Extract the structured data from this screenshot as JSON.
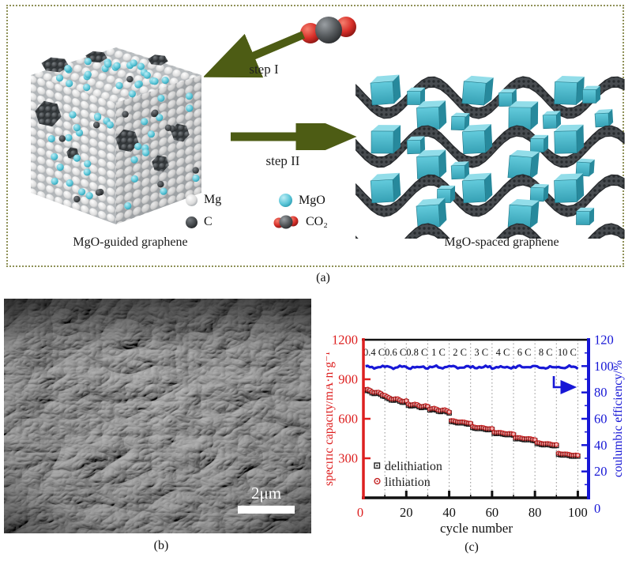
{
  "panel_a": {
    "label": "(a)",
    "left_caption": "MgO-guided graphene",
    "right_caption": "MgO-spaced graphene",
    "step1_label": "step I",
    "step2_label": "step II",
    "legend": [
      {
        "label": "Mg",
        "swatch": "white-sphere"
      },
      {
        "label": "C",
        "swatch": "black-sphere"
      },
      {
        "label": "MgO",
        "swatch": "cyan-sphere"
      },
      {
        "label": "CO₂",
        "swatch": "co2-molecule"
      }
    ],
    "colors": {
      "arrow": "#4d5c14",
      "border": "#8f9158",
      "mgo": "#49bdd2",
      "sheet": "#3c4043"
    }
  },
  "panel_b": {
    "label": "(b)",
    "scale_bar_label": "2μm"
  },
  "panel_c": {
    "label": "(c)",
    "chart_data": {
      "type": "scatter",
      "xlabel": "cycle number",
      "ylabel_left": "specific capacity/mA·h·g⁻¹",
      "ylabel_right": "coulumbic efficiency/%",
      "xlim": [
        0,
        105
      ],
      "ylim_left": [
        0,
        1200
      ],
      "ylim_right": [
        0,
        120
      ],
      "x_ticks": [
        0,
        20,
        40,
        60,
        80,
        100
      ],
      "y_ticks_left": [
        0,
        300,
        600,
        900,
        1200
      ],
      "y_ticks_right": [
        0,
        20,
        40,
        60,
        80,
        100,
        120
      ],
      "grid": "vertical dotted line every 10 cycles",
      "rate_segments": [
        {
          "rate_label": "0.4 C",
          "cycles": [
            1,
            10
          ],
          "capacity_start": 815,
          "capacity_end": 775
        },
        {
          "rate_label": "0.6 C",
          "cycles": [
            11,
            20
          ],
          "capacity_start": 755,
          "capacity_end": 725
        },
        {
          "rate_label": "0.8 C",
          "cycles": [
            21,
            30
          ],
          "capacity_start": 706,
          "capacity_end": 684
        },
        {
          "rate_label": "1 C",
          "cycles": [
            31,
            40
          ],
          "capacity_start": 672,
          "capacity_end": 650
        },
        {
          "rate_label": "2 C",
          "cycles": [
            41,
            50
          ],
          "capacity_start": 578,
          "capacity_end": 560
        },
        {
          "rate_label": "3 C",
          "cycles": [
            51,
            60
          ],
          "capacity_start": 532,
          "capacity_end": 516
        },
        {
          "rate_label": "4 C",
          "cycles": [
            61,
            70
          ],
          "capacity_start": 492,
          "capacity_end": 476
        },
        {
          "rate_label": "6 C",
          "cycles": [
            71,
            80
          ],
          "capacity_start": 450,
          "capacity_end": 436
        },
        {
          "rate_label": "8 C",
          "cycles": [
            81,
            90
          ],
          "capacity_start": 410,
          "capacity_end": 396
        },
        {
          "rate_label": "10 C",
          "cycles": [
            91,
            100
          ],
          "capacity_start": 330,
          "capacity_end": 314
        }
      ],
      "series": [
        {
          "name": "delithiation",
          "marker": "open-square",
          "color": "#1a1a1a"
        },
        {
          "name": "lithiation",
          "marker": "open-circle",
          "color": "#c42222"
        }
      ],
      "coulombic_efficiency_pct": 99.5,
      "legend_position": "lower-left-inside",
      "colors": {
        "left_axis": "#dd2020",
        "right_axis": "#1717d6",
        "efficiency_line": "#1717d6"
      }
    }
  }
}
